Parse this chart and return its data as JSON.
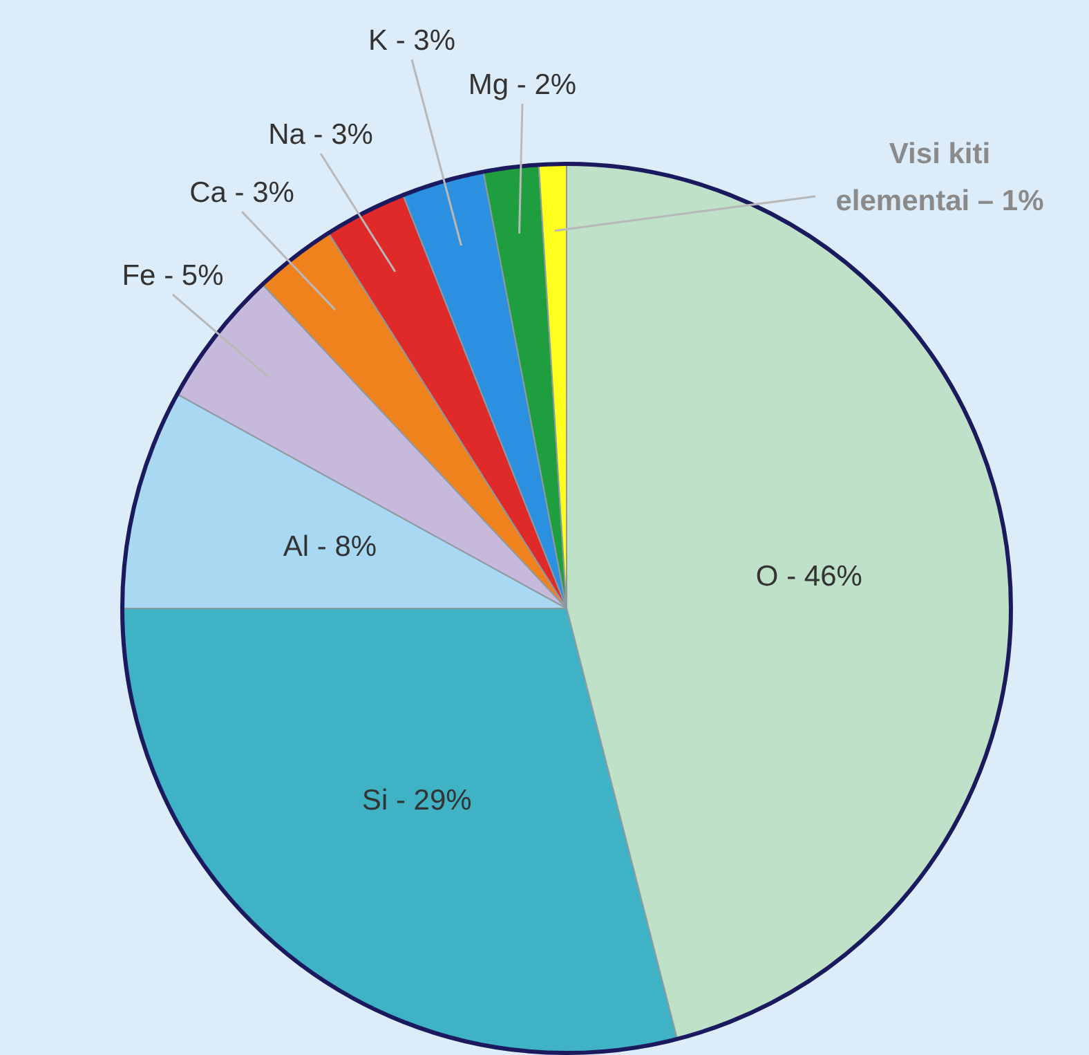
{
  "chart_data": {
    "type": "pie",
    "categories": [
      "O",
      "Si",
      "Al",
      "Fe",
      "Ca",
      "Na",
      "K",
      "Mg",
      "Visi kiti elementai"
    ],
    "values": [
      46,
      29,
      8,
      5,
      3,
      3,
      3,
      2,
      1
    ],
    "value_labels": [
      "46%",
      "29%",
      "8%",
      "5%",
      "3%",
      "3%",
      "3%",
      "2%",
      "1%"
    ],
    "colors": [
      "#bfe1c8",
      "#3fb2c6",
      "#a9d9f2",
      "#c6b9dc",
      "#f0821e",
      "#e02a2a",
      "#2b90e0",
      "#1f9e40",
      "#ffff1e"
    ]
  }
}
